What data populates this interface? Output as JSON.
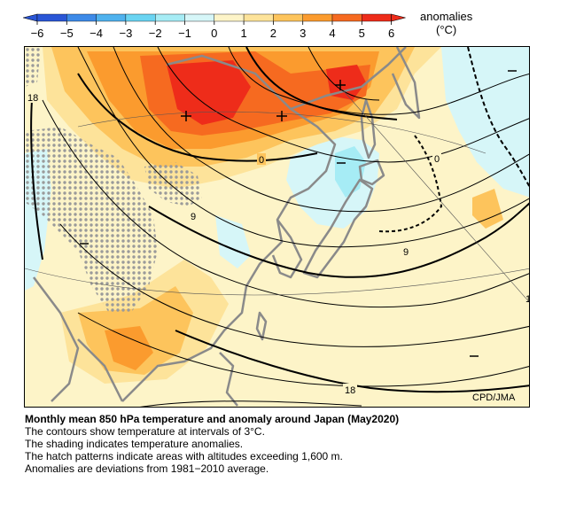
{
  "legend": {
    "title_line1": "anomalies",
    "title_line2": "(°C)",
    "ticks": [
      "−6",
      "−5",
      "−4",
      "−3",
      "−2",
      "−1",
      "0",
      "1",
      "2",
      "3",
      "4",
      "5",
      "6"
    ],
    "colors": [
      "#2a56d6",
      "#3d8ae8",
      "#4fb2ee",
      "#6ad4f2",
      "#a6ecf5",
      "#d6f6f8",
      "#fdf4c8",
      "#fde39a",
      "#fdc45c",
      "#fb9b2e",
      "#f66a20",
      "#ee2c1a"
    ]
  },
  "map": {
    "contour_labels": [
      {
        "id": "18-west",
        "text": "18"
      },
      {
        "id": "0-mid",
        "text": "0"
      },
      {
        "id": "9-mid",
        "text": "9"
      },
      {
        "id": "0-east",
        "text": "0"
      },
      {
        "id": "9-east",
        "text": "9"
      },
      {
        "id": "18-south",
        "text": "18"
      },
      {
        "id": "partial-edge",
        "text": "1"
      }
    ],
    "credit": "CPD/JMA",
    "colors": {
      "land_border": "#8a8a8a",
      "base": "#fdf4c8",
      "pale_yellow": "#fde39a",
      "orange": "#fdc45c",
      "dark_orange": "#fb9b2e",
      "red_orange": "#f66a20",
      "red": "#ee2c1a",
      "cyan": "#d6f6f8",
      "light_blue": "#a6ecf5"
    }
  },
  "caption": {
    "title": "Monthly mean 850 hPa temperature and anomaly around Japan (May2020)",
    "line1": "The contours show temperature at intervals of 3°C.",
    "line2": "The shading indicates temperature anomalies.",
    "line3": "The hatch patterns indicate areas with altitudes exceeding 1,600 m.",
    "line4": "Anomalies are deviations from 1981−2010 average."
  }
}
